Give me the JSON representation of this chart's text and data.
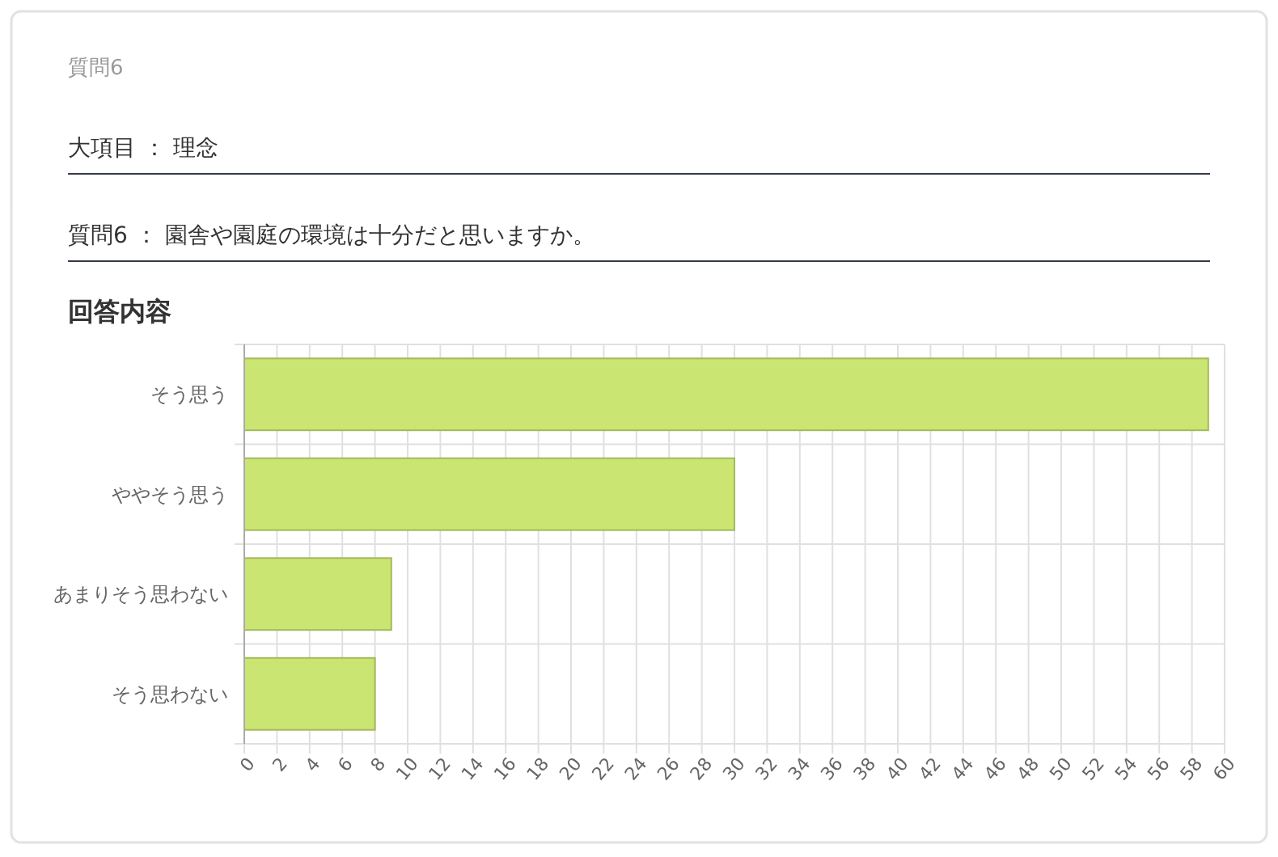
{
  "chart_data": {
    "type": "bar",
    "orientation": "horizontal",
    "title": "質問6",
    "subtitle": "回答内容",
    "annotations": [
      "大項目 ： 理念",
      "質問6 ： 園舎や園庭の環境は十分だと思いますか。"
    ],
    "categories": [
      "そう思う",
      "ややそう思う",
      "あまりそう思わない",
      "そう思わない"
    ],
    "values": [
      59,
      30,
      9,
      8
    ],
    "color": "#cbe572",
    "xlim": [
      0,
      60
    ],
    "xticks": [
      0,
      2,
      4,
      6,
      8,
      10,
      12,
      14,
      16,
      18,
      20,
      22,
      24,
      26,
      28,
      30,
      32,
      34,
      36,
      38,
      40,
      42,
      44,
      46,
      48,
      50,
      52,
      54,
      56,
      58,
      60
    ],
    "grid": true
  }
}
